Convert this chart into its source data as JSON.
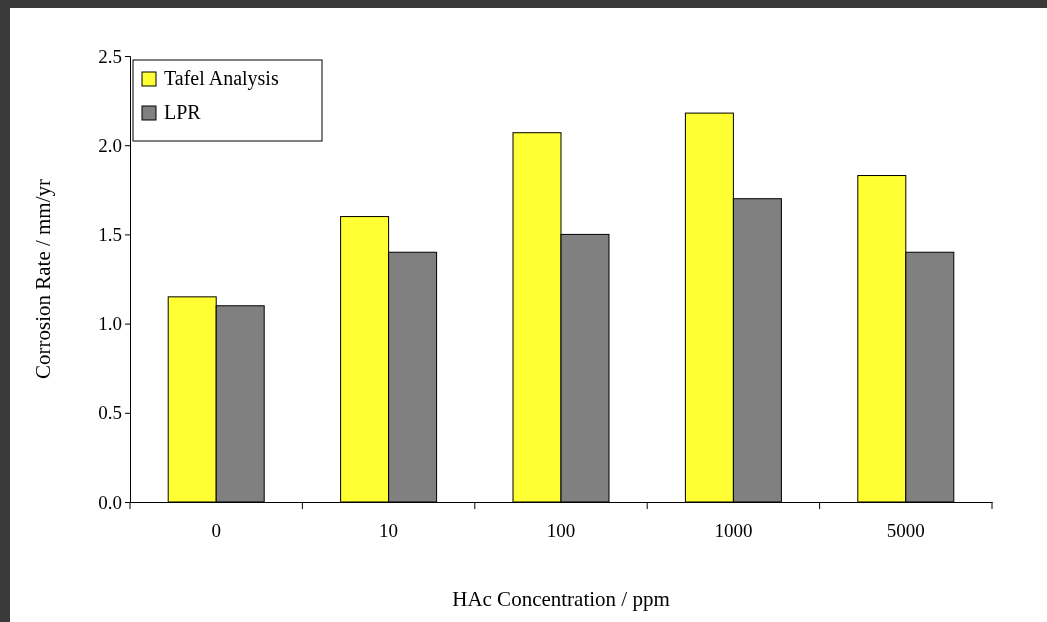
{
  "chart_data": {
    "type": "bar",
    "xlabel": "HAc Concentration / ppm",
    "ylabel": "Corrosion Rate / mm/yr",
    "categories": [
      "0",
      "10",
      "100",
      "1000",
      "5000"
    ],
    "series": [
      {
        "name": "Tafel Analysis",
        "color": "#ffff33",
        "values": [
          1.15,
          1.6,
          2.07,
          2.18,
          1.83
        ]
      },
      {
        "name": "LPR",
        "color": "#808080",
        "values": [
          1.1,
          1.4,
          1.5,
          1.7,
          1.4
        ]
      }
    ],
    "ylim": [
      0,
      2.5
    ],
    "yticks": [
      {
        "value": 0,
        "label": "0.0"
      },
      {
        "value": 0.5,
        "label": "0.5"
      },
      {
        "value": 1,
        "label": "1.0"
      },
      {
        "value": 1.5,
        "label": "1.5"
      },
      {
        "value": 2,
        "label": "2.0"
      },
      {
        "value": 2.5,
        "label": "2.5"
      }
    ],
    "grid": false,
    "legend": "top left"
  }
}
